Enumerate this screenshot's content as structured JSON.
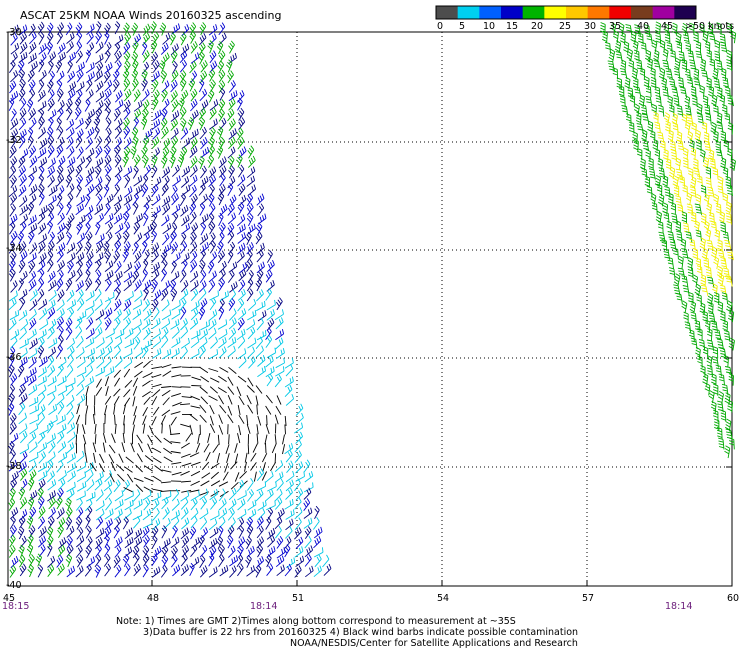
{
  "title": "ASCAT 25KM NOAA Winds 20160325 ascending",
  "colorbar": {
    "labels": [
      "0",
      "5",
      "10",
      "15",
      "20",
      "25",
      "30",
      "35",
      "40",
      "45",
      ">50 knots"
    ],
    "colors": [
      "#4d4d4d",
      "#00d0f0",
      "#0060ff",
      "#0000c8",
      "#00b400",
      "#ffff00",
      "#ffc800",
      "#ff7800",
      "#f00000",
      "#783c1e",
      "#a000a0",
      "#1e0050"
    ]
  },
  "latitude_labels": [
    "-30",
    "-32",
    "-34",
    "-36",
    "-38",
    "-40"
  ],
  "longitude_labels": [
    "45",
    "48",
    "51",
    "54",
    "57",
    "60"
  ],
  "time_labels": [
    "18:15",
    "18:14",
    "18:14"
  ],
  "notes": [
    "Note: 1) Times are GMT 2)Times along bottom correspond to measurement at ~35S",
    "3)Data buffer is 22 hrs from 20160325 4) Black wind barbs indicate possible contamination",
    "NOAA/NESDIS/Center for Satellite Applications and Research"
  ],
  "map": {
    "lon_range": [
      45,
      60
    ],
    "lat_range": [
      -40,
      -30
    ],
    "grid": "dotted",
    "swaths": [
      {
        "name": "west",
        "lon_range": [
          45,
          51.3
        ],
        "colors": [
          "navy",
          "blue",
          "cyan",
          "green",
          "black"
        ]
      },
      {
        "name": "east",
        "lon_range": [
          57.4,
          60
        ],
        "colors": [
          "green",
          "yellow"
        ]
      }
    ]
  }
}
